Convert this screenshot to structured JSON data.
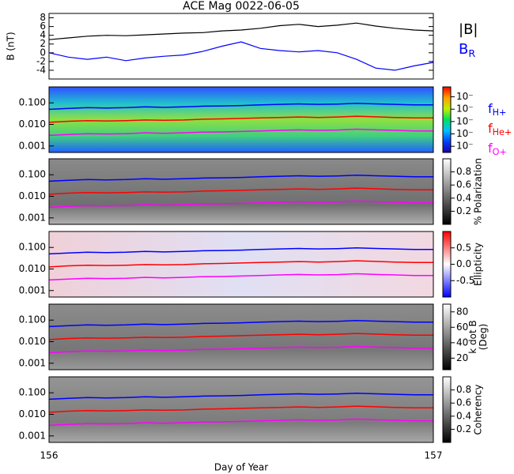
{
  "chart_data": [
    {
      "type": "line",
      "title": "ACE Mag 0022-06-05",
      "ylabel": "B (nT)",
      "x": [
        156,
        156.05,
        156.1,
        156.15,
        156.2,
        156.25,
        156.3,
        156.35,
        156.4,
        156.45,
        156.5,
        156.55,
        156.6,
        156.65,
        156.7,
        156.75,
        156.8,
        156.85,
        156.9,
        156.95,
        157
      ],
      "xlim": [
        156,
        157
      ],
      "ylim": [
        -6,
        9
      ],
      "yticks": [
        -4,
        -2,
        0,
        2,
        4,
        6,
        8
      ],
      "series": [
        {
          "name": "|B|",
          "color": "#000000",
          "values": [
            3.0,
            3.4,
            3.8,
            4.0,
            3.9,
            4.1,
            4.3,
            4.5,
            4.6,
            5.0,
            5.2,
            5.6,
            6.2,
            6.5,
            6.0,
            6.3,
            6.8,
            6.1,
            5.6,
            5.2,
            5.0
          ]
        },
        {
          "name": "B",
          "subscript": "R",
          "color": "#0000ff",
          "values": [
            0,
            -1,
            -1.5,
            -1,
            -1.8,
            -1.2,
            -0.8,
            -0.5,
            0.3,
            1.5,
            2.5,
            1.0,
            0.5,
            0.2,
            0.5,
            0,
            -1.5,
            -3.5,
            -4,
            -3,
            -2.2
          ]
        }
      ]
    },
    {
      "type": "spectrogram",
      "xlabel": "Day of Year",
      "x": [
        156,
        156.05,
        156.1,
        156.15,
        156.2,
        156.25,
        156.3,
        156.35,
        156.4,
        156.45,
        156.5,
        156.55,
        156.6,
        156.65,
        156.7,
        156.75,
        156.8,
        156.85,
        156.9,
        156.95,
        157
      ],
      "xlim": [
        156,
        157
      ],
      "xticks": [
        156,
        157
      ],
      "yscale": "log",
      "ylim": [
        0.0005,
        0.55
      ],
      "yticks": [
        0.001,
        {
          "value": 0.01,
          "label": "0.010"
        },
        {
          "value": 0.1,
          "label": "0.100"
        }
      ],
      "series": [
        {
          "name": "f",
          "subscript": "H+",
          "color": "#0000ff",
          "values": [
            0.05,
            0.055,
            0.06,
            0.058,
            0.06,
            0.065,
            0.062,
            0.065,
            0.07,
            0.072,
            0.075,
            0.08,
            0.085,
            0.09,
            0.085,
            0.088,
            0.095,
            0.09,
            0.085,
            0.08,
            0.08
          ]
        },
        {
          "name": "f",
          "subscript": "He+",
          "color": "#ff0000",
          "values": [
            0.0125,
            0.014,
            0.015,
            0.0145,
            0.015,
            0.016,
            0.0155,
            0.016,
            0.0175,
            0.018,
            0.019,
            0.02,
            0.021,
            0.022,
            0.021,
            0.022,
            0.024,
            0.0225,
            0.021,
            0.02,
            0.02
          ]
        },
        {
          "name": "f",
          "subscript": "O+",
          "color": "#ff00ff",
          "values": [
            0.0031,
            0.0034,
            0.0037,
            0.0036,
            0.0037,
            0.0041,
            0.0039,
            0.0041,
            0.0044,
            0.0045,
            0.0047,
            0.005,
            0.0053,
            0.0056,
            0.0053,
            0.0055,
            0.006,
            0.0056,
            0.0053,
            0.005,
            0.005
          ]
        }
      ],
      "panels": [
        {
          "clim": [
            -0.5,
            4.8
          ],
          "cticks": [
            {
              "value": 4,
              "label": "10⁻"
            },
            {
              "value": 3,
              "label": "10⁻"
            },
            {
              "value": 2,
              "label": "10⁻"
            },
            {
              "value": 1,
              "label": "10⁻"
            },
            {
              "value": 0,
              "label": "10⁻"
            }
          ],
          "colormap": [
            "#2000a0",
            "#0040ff",
            "#00c0ff",
            "#00e060",
            "#c0f000",
            "#ffa000",
            "#ff0000"
          ]
        },
        {
          "colorbar_label": [
            "% Polarization"
          ],
          "clim": [
            0,
            1
          ],
          "cticks": [
            0.2,
            0.4,
            0.6,
            0.8
          ],
          "colormap": [
            "#000000",
            "#ffffff"
          ]
        },
        {
          "colorbar_label": [
            "Ellipticity"
          ],
          "clim": [
            -1,
            1
          ],
          "cticks": [
            -0.5,
            {
              "value": 0,
              "label": "0.0"
            },
            0.5
          ],
          "colormap": [
            "#0000ff",
            "#ffffff",
            "#ff0000"
          ]
        },
        {
          "colorbar_label": [
            "k dot B",
            "(Deg)"
          ],
          "clim": [
            5,
            90
          ],
          "cticks": [
            20,
            40,
            60,
            80
          ],
          "colormap": [
            "#000000",
            "#ffffff"
          ]
        },
        {
          "colorbar_label": [
            "Coherency"
          ],
          "clim": [
            0,
            1
          ],
          "cticks": [
            0.2,
            0.4,
            0.6,
            0.8
          ],
          "colormap": [
            "#000000",
            "#ffffff"
          ]
        }
      ]
    }
  ]
}
